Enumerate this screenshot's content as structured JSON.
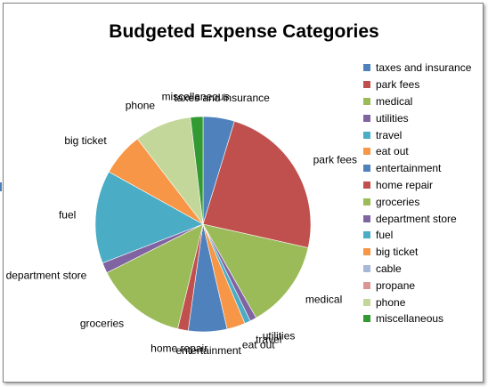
{
  "chart_data": {
    "type": "pie",
    "title": "Budgeted Expense Categories",
    "legend_position": "right",
    "categories": [
      "taxes and insurance",
      "park fees",
      "medical",
      "utilities",
      "travel",
      "eat out",
      "entertainment",
      "home repair",
      "groceries",
      "department store",
      "fuel",
      "big ticket",
      "cable",
      "propane",
      "phone",
      "miscellaneous"
    ],
    "values": [
      4.8,
      24.2,
      13.5,
      1.0,
      0.9,
      2.8,
      5.9,
      1.6,
      14.0,
      1.6,
      14.2,
      6.6,
      0.0,
      0.0,
      8.7,
      1.9
    ],
    "colors": [
      "#4f81bd",
      "#c0504d",
      "#9bbb59",
      "#8064a2",
      "#4bacc6",
      "#f79646",
      "#4f81bd",
      "#c0504d",
      "#9bbb59",
      "#8064a2",
      "#4bacc6",
      "#f79646",
      "#a5b8d8",
      "#d99694",
      "#c4d79b",
      "#339933"
    ],
    "data_labels": [
      "taxes and insurance",
      "park fees",
      "medical",
      "utilities",
      "travel",
      "eat out",
      "entertainment",
      "home repair",
      "groceries",
      "department store",
      "fuel",
      "big ticket",
      "",
      "",
      "phone",
      "miscellaneous"
    ],
    "start_angle_deg": 0,
    "direction": "clockwise"
  }
}
